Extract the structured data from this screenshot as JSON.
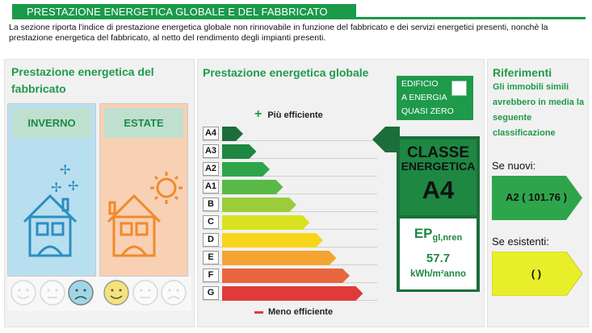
{
  "header": {
    "title": "PRESTAZIONE ENERGETICA GLOBALE E DEL FABBRICATO",
    "intro": "La sezione riporta l'indice di prestazione energetica globale non rinnovabile in funzione del fabbricato e dei servizi energetici presenti, nonchè la prestazione energetica del fabbricato, al netto del rendimento degli impianti presenti."
  },
  "fabbricato": {
    "title": "Prestazione energetica del fabbricato",
    "winter_label": "INVERNO",
    "summer_label": "ESTATE",
    "faces": [
      "happy",
      "neutral",
      "sad",
      "happy",
      "neutral",
      "sad"
    ],
    "winter_active_face": "sad",
    "summer_active_face": "happy"
  },
  "globale": {
    "title": "Prestazione energetica globale",
    "nzeb_line1": "EDIFICIO",
    "nzeb_line2": "A ENERGIA",
    "nzeb_line3": "QUASI ZERO",
    "legend_top": "Più efficiente",
    "legend_bottom": "Meno efficiente",
    "grades": [
      "A4",
      "A3",
      "A2",
      "A1",
      "B",
      "C",
      "D",
      "E",
      "F",
      "G"
    ],
    "grade_colors": [
      "#1b6e3a",
      "#1e8742",
      "#2ea54b",
      "#58b947",
      "#9bcc3a",
      "#d8e21f",
      "#f7d51b",
      "#f3a533",
      "#e8663e",
      "#e03a3a"
    ],
    "class_line1": "CLASSE",
    "class_line2": "ENERGETICA",
    "class_value": "A4",
    "ep_label": "EP",
    "ep_sub": "gl,nren",
    "ep_value": "57.7",
    "ep_unit": "kWh/m²anno"
  },
  "riferimenti": {
    "title": "Riferimenti",
    "text": "Gli immobili simili avrebbero in media la seguente classificazione",
    "new_label": "Se nuovi:",
    "new_value": "A2 ( 101.76 )",
    "new_color": "#2ea54b",
    "existing_label": "Se esistenti:",
    "existing_value": "(   )",
    "existing_color": "#e8ef2a"
  }
}
